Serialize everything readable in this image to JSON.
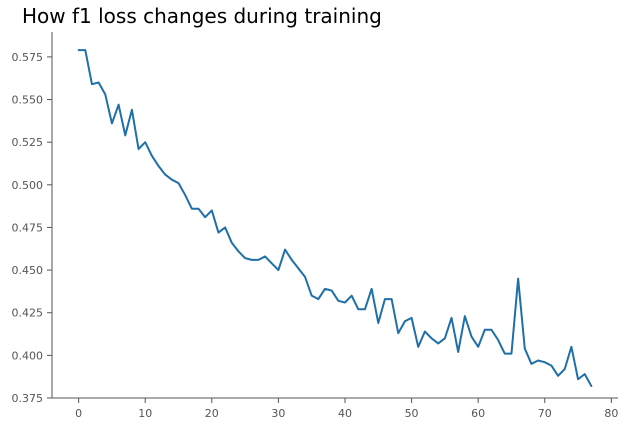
{
  "chart_data": {
    "type": "line",
    "title": "How f1 loss changes during training",
    "xlabel": "",
    "ylabel": "",
    "xlim": [
      -4,
      81
    ],
    "ylim": [
      0.375,
      0.5896
    ],
    "xticks": [
      0,
      10,
      20,
      30,
      40,
      50,
      60,
      70,
      80
    ],
    "yticks": [
      0.375,
      0.4,
      0.425,
      0.45,
      0.475,
      0.5,
      0.525,
      0.55,
      0.575
    ],
    "xtick_labels": [
      "0",
      "10",
      "20",
      "30",
      "40",
      "50",
      "60",
      "70",
      "80"
    ],
    "ytick_labels": [
      "0.375",
      "0.400",
      "0.425",
      "0.450",
      "0.475",
      "0.500",
      "0.525",
      "0.550",
      "0.575"
    ],
    "grid": false,
    "series": [
      {
        "color": "#1f6fa8",
        "x": [
          0,
          1,
          2,
          3,
          4,
          5,
          6,
          7,
          8,
          9,
          10,
          11,
          12,
          13,
          14,
          15,
          16,
          17,
          18,
          19,
          20,
          21,
          22,
          23,
          24,
          25,
          26,
          27,
          28,
          29,
          30,
          31,
          32,
          33,
          34,
          35,
          36,
          37,
          38,
          39,
          40,
          41,
          42,
          43,
          44,
          45,
          46,
          47,
          48,
          49,
          50,
          51,
          52,
          53,
          54,
          55,
          56,
          57,
          58,
          59,
          60,
          61,
          62,
          63,
          64,
          65,
          66,
          67,
          68,
          69,
          70,
          71,
          72,
          73,
          74,
          75,
          76,
          77
        ],
        "y": [
          0.579,
          0.579,
          0.559,
          0.56,
          0.553,
          0.536,
          0.547,
          0.529,
          0.544,
          0.521,
          0.525,
          0.517,
          0.511,
          0.506,
          0.503,
          0.501,
          0.494,
          0.486,
          0.486,
          0.481,
          0.485,
          0.472,
          0.475,
          0.466,
          0.461,
          0.457,
          0.456,
          0.456,
          0.458,
          0.454,
          0.45,
          0.462,
          0.456,
          0.451,
          0.446,
          0.435,
          0.433,
          0.439,
          0.438,
          0.432,
          0.431,
          0.435,
          0.427,
          0.427,
          0.439,
          0.419,
          0.433,
          0.433,
          0.413,
          0.42,
          0.422,
          0.405,
          0.414,
          0.41,
          0.407,
          0.41,
          0.422,
          0.402,
          0.423,
          0.411,
          0.405,
          0.415,
          0.415,
          0.409,
          0.401,
          0.401,
          0.445,
          0.404,
          0.395,
          0.397,
          0.396,
          0.394,
          0.388,
          0.392,
          0.405,
          0.386,
          0.389,
          0.382
        ]
      }
    ]
  }
}
